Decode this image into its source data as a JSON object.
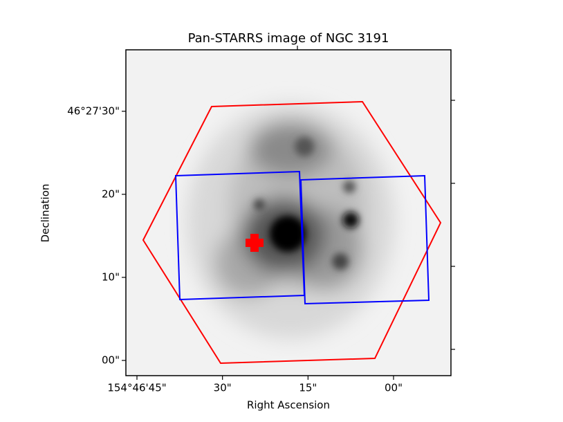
{
  "chart_data": {
    "type": "image",
    "title": "Pan-STARRS image of NGC 3191",
    "xlabel": "Right Ascension",
    "ylabel": "Declination",
    "xlim": [
      154.779706,
      154.76387
    ],
    "ylim": [
      46.449491,
      46.460389
    ],
    "xticks": [
      {
        "value": 154.779167,
        "label": "154°46'45\""
      },
      {
        "value": 154.775,
        "label": "30\""
      },
      {
        "value": 154.770833,
        "label": "15\""
      },
      {
        "value": 154.766667,
        "label": "00\""
      }
    ],
    "yticks": [
      {
        "value": 46.45,
        "label": "00\""
      },
      {
        "value": 46.452778,
        "label": "10\""
      },
      {
        "value": 46.455556,
        "label": "20\""
      },
      {
        "value": 46.458333,
        "label": "46°27'30\""
      }
    ]
  }
}
